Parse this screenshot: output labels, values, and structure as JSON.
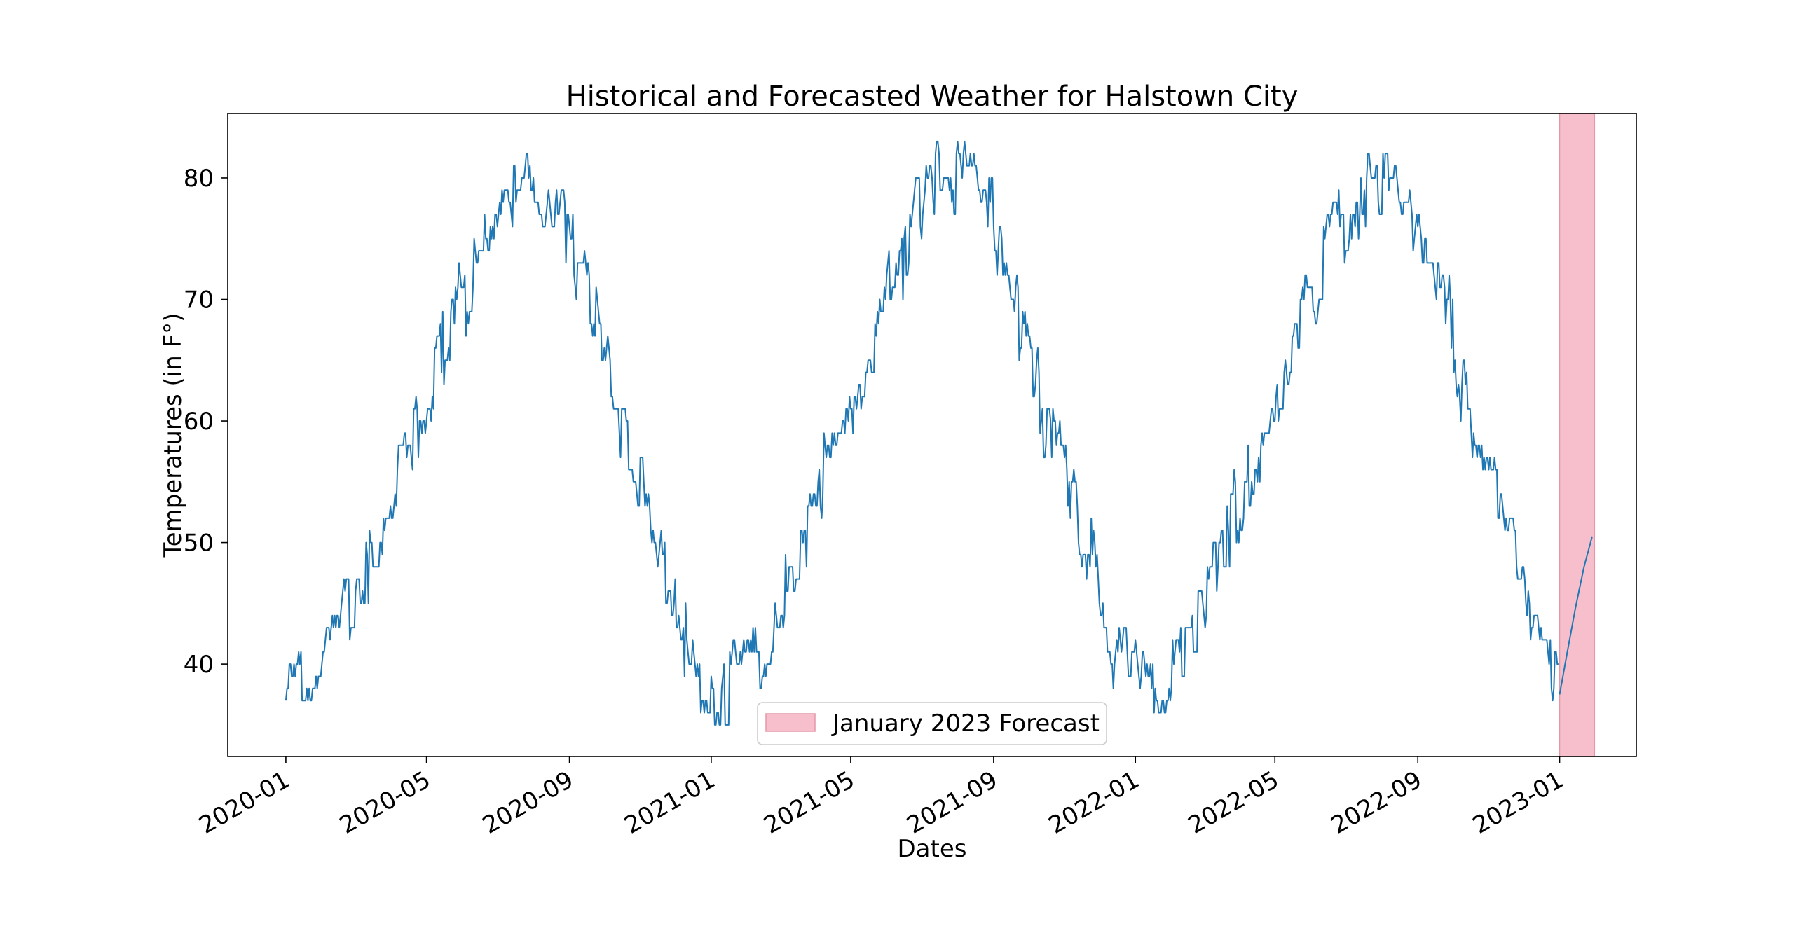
{
  "chart_data": {
    "type": "line",
    "title": "Historical and Forecasted Weather for Halstown City",
    "xlabel": "Dates",
    "ylabel": "Temperatures (in F°)",
    "xlim": [
      "2019-11-12",
      "2023-03-08"
    ],
    "ylim": [
      32.4,
      85.3
    ],
    "x_ticks": [
      "2020-01",
      "2020-05",
      "2020-09",
      "2021-01",
      "2021-05",
      "2021-09",
      "2022-01",
      "2022-05",
      "2022-09",
      "2023-01"
    ],
    "y_ticks": [
      40,
      50,
      60,
      70,
      80
    ],
    "grid": false,
    "series": [
      {
        "name": "",
        "color": "#1f77b4",
        "style": "daily historical temperatures, fluctuating about ±3 °F around a seasonal curve",
        "x_start": "2020-01-01",
        "x_end": "2022-12-31",
        "x": [
          "2020-01-01",
          "2020-01-15",
          "2020-02-01",
          "2020-02-15",
          "2020-03-01",
          "2020-03-15",
          "2020-04-01",
          "2020-04-15",
          "2020-05-01",
          "2020-05-15",
          "2020-06-01",
          "2020-06-15",
          "2020-07-01",
          "2020-07-15",
          "2020-08-01",
          "2020-08-15",
          "2020-09-01",
          "2020-09-15",
          "2020-10-01",
          "2020-10-15",
          "2020-11-01",
          "2020-11-15",
          "2020-12-01",
          "2020-12-15",
          "2021-01-01",
          "2021-01-15",
          "2021-02-01",
          "2021-02-15",
          "2021-03-01",
          "2021-03-15",
          "2021-04-01",
          "2021-04-15",
          "2021-05-01",
          "2021-05-15",
          "2021-06-01",
          "2021-06-15",
          "2021-07-01",
          "2021-07-15",
          "2021-08-01",
          "2021-08-15",
          "2021-09-01",
          "2021-09-15",
          "2021-10-01",
          "2021-10-15",
          "2021-11-01",
          "2021-11-15",
          "2021-12-01",
          "2021-12-15",
          "2022-01-01",
          "2022-01-15",
          "2022-02-01",
          "2022-02-15",
          "2022-03-01",
          "2022-03-15",
          "2022-04-01",
          "2022-04-15",
          "2022-05-01",
          "2022-05-15",
          "2022-06-01",
          "2022-06-15",
          "2022-07-01",
          "2022-07-15",
          "2022-08-01",
          "2022-08-15",
          "2022-09-01",
          "2022-09-15",
          "2022-10-01",
          "2022-10-15",
          "2022-11-01",
          "2022-11-15",
          "2022-12-01",
          "2022-12-15",
          "2022-12-31"
        ],
        "values": [
          37,
          39,
          41,
          44,
          46,
          49,
          53,
          57,
          62,
          67,
          69,
          75,
          77,
          79,
          80,
          78,
          75,
          70,
          66,
          60,
          56,
          50,
          47,
          40,
          38,
          38,
          39,
          42,
          44,
          49,
          53,
          57,
          61,
          66,
          70,
          74,
          78,
          79,
          80,
          78,
          76,
          71,
          66,
          60,
          57,
          50,
          48,
          40,
          39,
          38,
          39,
          42,
          44,
          49,
          53,
          57,
          61,
          66,
          70,
          74,
          77,
          79,
          80,
          79,
          76,
          71,
          67,
          60,
          57,
          50,
          48,
          40,
          38
        ]
      },
      {
        "name": "",
        "color": "#1f77b4",
        "style": "smooth forecast curve",
        "x": [
          "2023-01-01",
          "2023-01-08",
          "2023-01-15",
          "2023-01-22",
          "2023-01-29"
        ],
        "values": [
          37.5,
          41.2,
          44.8,
          48.0,
          50.5
        ]
      }
    ],
    "span": {
      "label": "January 2023 Forecast",
      "x_start": "2023-01-01",
      "x_end": "2023-01-31",
      "color": "#f6bfcb",
      "edge_color": "#e597a8"
    },
    "legend": {
      "placement": "lower center",
      "entries": [
        "January 2023 Forecast"
      ]
    }
  }
}
